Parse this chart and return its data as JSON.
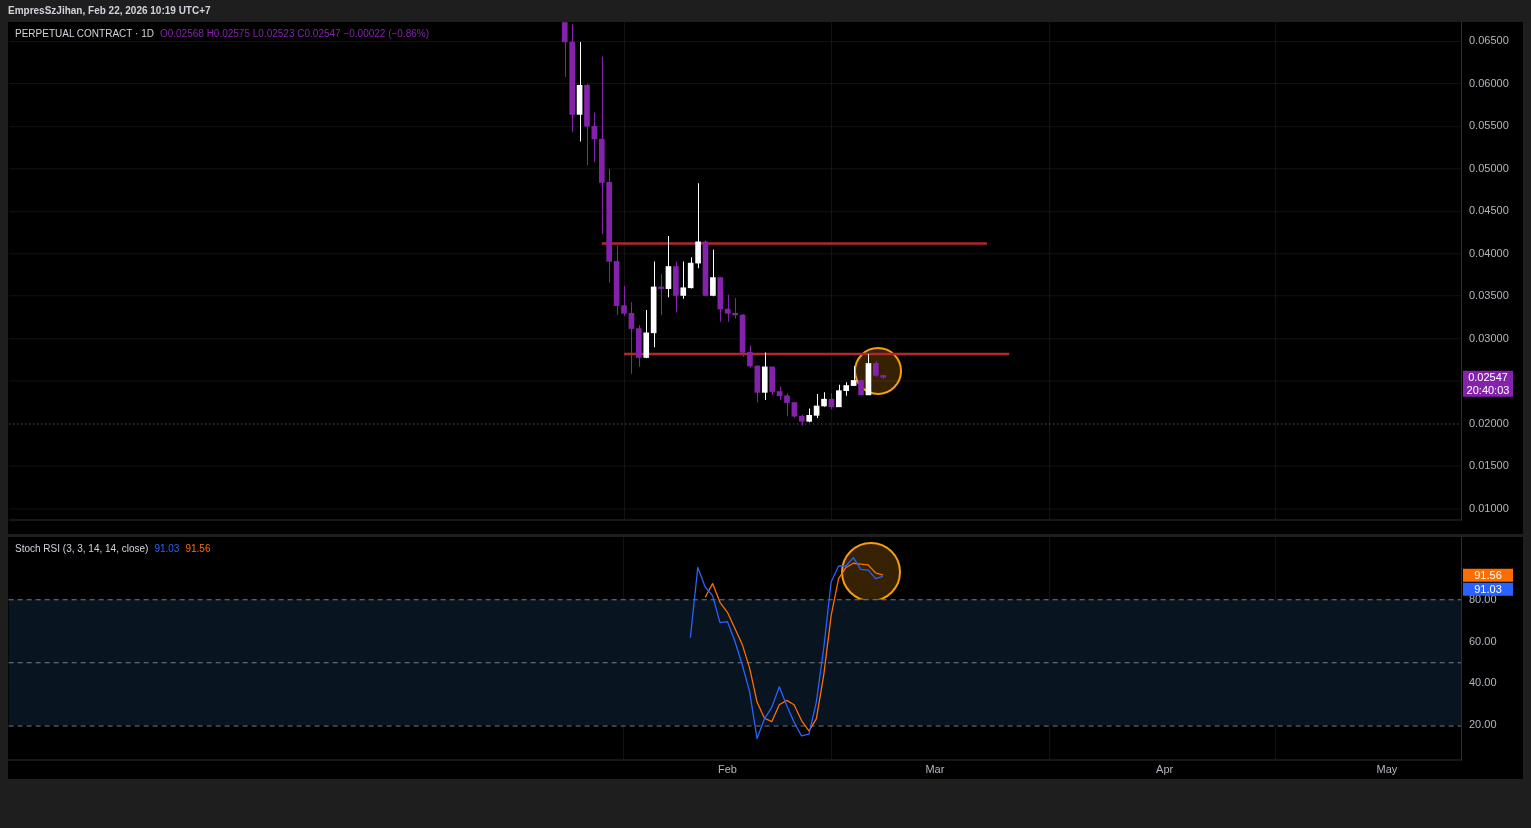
{
  "chart_data": [
    {
      "type": "candlestick",
      "title": "PERPETUAL CONTRACT · 1D",
      "subtitle": "EmpresSzJihan, Feb 22, 2026 10:19 UTC+7",
      "annotations": [
        "O0.02568 H0.02575 L0.02523 C0.02547 −0.00022 (−0.86%)",
        "0.02547",
        "20:40:03"
      ],
      "x": [
        "2026-01-10",
        "2026-01-11",
        "2026-01-12",
        "2026-01-13",
        "2026-01-14",
        "2026-01-15",
        "2026-01-16",
        "2026-01-17",
        "2026-01-18",
        "2026-01-19",
        "2026-01-20",
        "2026-01-21",
        "2026-01-22",
        "2026-01-23",
        "2026-01-24",
        "2026-01-25",
        "2026-01-26",
        "2026-01-27",
        "2026-01-28",
        "2026-01-29",
        "2026-01-30",
        "2026-01-31",
        "2026-02-01",
        "2026-02-02",
        "2026-02-03",
        "2026-02-04",
        "2026-02-05",
        "2026-02-06",
        "2026-02-07",
        "2026-02-08",
        "2026-02-09",
        "2026-02-10",
        "2026-02-11",
        "2026-02-12",
        "2026-02-13",
        "2026-02-14",
        "2026-02-15",
        "2026-02-16",
        "2026-02-17",
        "2026-02-18",
        "2026-02-19",
        "2026-02-20",
        "2026-02-21",
        "2026-02-22"
      ],
      "ohlc": [
        [
          0.0672,
          0.0672,
          0.0608,
          0.0649
        ],
        [
          0.0649,
          0.067,
          0.0543,
          0.0564
        ],
        [
          0.0564,
          0.0649,
          0.0532,
          0.0598
        ],
        [
          0.0598,
          0.06,
          0.0504,
          0.055
        ],
        [
          0.055,
          0.0566,
          0.0508,
          0.0535
        ],
        [
          0.0535,
          0.0632,
          0.0423,
          0.0484
        ],
        [
          0.0484,
          0.05,
          0.0366,
          0.0391
        ],
        [
          0.0391,
          0.041,
          0.0328,
          0.0339
        ],
        [
          0.0339,
          0.0362,
          0.0327,
          0.033
        ],
        [
          0.033,
          0.0343,
          0.0259,
          0.0312
        ],
        [
          0.0312,
          0.0316,
          0.0267,
          0.0278
        ],
        [
          0.0278,
          0.0334,
          0.0277,
          0.0307
        ],
        [
          0.0307,
          0.0391,
          0.029,
          0.0361
        ],
        [
          0.0361,
          0.0376,
          0.0328,
          0.0359
        ],
        [
          0.0359,
          0.0421,
          0.0349,
          0.0385
        ],
        [
          0.0385,
          0.0391,
          0.0331,
          0.0351
        ],
        [
          0.0351,
          0.0391,
          0.0347,
          0.036
        ],
        [
          0.036,
          0.0396,
          0.0359,
          0.0389
        ],
        [
          0.0389,
          0.0483,
          0.0383,
          0.0414
        ],
        [
          0.0414,
          0.0416,
          0.035,
          0.0351
        ],
        [
          0.0351,
          0.0405,
          0.035,
          0.0372
        ],
        [
          0.0372,
          0.0373,
          0.032,
          0.0335
        ],
        [
          0.0335,
          0.0352,
          0.032,
          0.033
        ],
        [
          0.033,
          0.0348,
          0.0324,
          0.0328
        ],
        [
          0.0328,
          0.0329,
          0.0279,
          0.0284
        ],
        [
          0.0284,
          0.0292,
          0.0266,
          0.0268
        ],
        [
          0.0268,
          0.0269,
          0.0225,
          0.0237
        ],
        [
          0.0237,
          0.0284,
          0.0228,
          0.0267
        ],
        [
          0.0267,
          0.0267,
          0.0234,
          0.0238
        ],
        [
          0.0238,
          0.0244,
          0.0228,
          0.0233
        ],
        [
          0.0233,
          0.0236,
          0.0209,
          0.0225
        ],
        [
          0.0225,
          0.0226,
          0.0207,
          0.0209
        ],
        [
          0.0209,
          0.0211,
          0.0198,
          0.0203
        ],
        [
          0.0203,
          0.0218,
          0.0202,
          0.021
        ],
        [
          0.021,
          0.0235,
          0.0207,
          0.0221
        ],
        [
          0.0221,
          0.0237,
          0.022,
          0.0229
        ],
        [
          0.0229,
          0.0236,
          0.0217,
          0.022
        ],
        [
          0.022,
          0.0246,
          0.022,
          0.0239
        ],
        [
          0.0239,
          0.0249,
          0.0233,
          0.0245
        ],
        [
          0.0245,
          0.0268,
          0.0245,
          0.0251
        ],
        [
          0.0251,
          0.0252,
          0.0234,
          0.0234
        ],
        [
          0.0234,
          0.0282,
          0.0234,
          0.0271
        ],
        [
          0.0271,
          0.0274,
          0.0255,
          0.0257
        ],
        [
          0.02568,
          0.02575,
          0.02523,
          0.02547
        ]
      ],
      "colors": [
        "#8522ab",
        "#8522ab",
        "#ffffff",
        "#8522ab",
        "#8522ab",
        "#8522ab",
        "#8522ab",
        "#8522ab",
        "#8522ab",
        "#8522ab",
        "#8522ab",
        "#ffffff",
        "#ffffff",
        "#8522ab",
        "#ffffff",
        "#8522ab",
        "#ffffff",
        "#ffffff",
        "#ffffff",
        "#8522ab",
        "#ffffff",
        "#8522ab",
        "#8522ab",
        "#8522ab",
        "#8522ab",
        "#8522ab",
        "#8522ab",
        "#ffffff",
        "#8522ab",
        "#8522ab",
        "#8522ab",
        "#8522ab",
        "#8522ab",
        "#ffffff",
        "#ffffff",
        "#ffffff",
        "#8522ab",
        "#ffffff",
        "#ffffff",
        "#ffffff",
        "#8522ab",
        "#ffffff",
        "#8522ab",
        "#8522ab"
      ],
      "series": [
        {
          "type": "line",
          "color": "#b2282d",
          "x": [
            "2026-01-15",
            "2026-03-08"
          ],
          "values": [
            0.0412,
            0.0412
          ]
        },
        {
          "type": "line",
          "color": "#b2282d",
          "x": [
            "2026-01-18",
            "2026-03-11"
          ],
          "values": [
            0.0282,
            0.0282
          ]
        }
      ],
      "ref_lines": [
        {
          "axis": "y",
          "value": 0.02,
          "color": "#787b86",
          "line_style": "dotted"
        }
      ],
      "xlim": [
        "2025-10-27",
        "2026-05-11"
      ],
      "xticks": [
        {
          "value": "2026-02-01",
          "label": null
        },
        {
          "value": "2026-03-01",
          "label": null
        },
        {
          "value": "2026-04-01",
          "label": null
        },
        {
          "value": "2026-05-01",
          "label": null
        }
      ],
      "ylim": [
        0.00874,
        0.0673
      ],
      "yticks": [
        {
          "value": 0.01,
          "label": "0.01000"
        },
        {
          "value": 0.015,
          "label": "0.01500"
        },
        {
          "value": 0.02,
          "label": "0.02000"
        },
        {
          "value": 0.025,
          "label": null
        },
        {
          "value": 0.03,
          "label": "0.03000"
        },
        {
          "value": 0.035,
          "label": "0.03500"
        },
        {
          "value": 0.04,
          "label": "0.04000"
        },
        {
          "value": 0.045,
          "label": "0.04500"
        },
        {
          "value": 0.05,
          "label": "0.05000"
        },
        {
          "value": 0.055,
          "label": "0.05500"
        },
        {
          "value": 0.06,
          "label": "0.06000"
        },
        {
          "value": 0.065,
          "label": "0.06500"
        }
      ],
      "tick_labels": "y",
      "grid": true,
      "legend": false
    },
    {
      "type": "line",
      "title": "Stoch RSI (3, 3, 14, 14, close)",
      "annotations": [
        "91.03",
        "91.56",
        "91.03",
        "91.56"
      ],
      "series": [
        {
          "color": "#2962ff",
          "x": [
            "2026-01-27",
            "2026-01-28",
            "2026-01-29",
            "2026-01-30",
            "2026-01-31",
            "2026-02-01",
            "2026-02-02",
            "2026-02-03",
            "2026-02-04",
            "2026-02-05",
            "2026-02-06",
            "2026-02-07",
            "2026-02-08",
            "2026-02-09",
            "2026-02-10",
            "2026-02-11",
            "2026-02-12",
            "2026-02-13",
            "2026-02-14",
            "2026-02-15",
            "2026-02-16",
            "2026-02-17",
            "2026-02-18",
            "2026-02-19",
            "2026-02-20",
            "2026-02-21",
            "2026-02-22"
          ],
          "values": [
            61.8,
            95.3,
            86.0,
            81.9,
            69.0,
            69.5,
            60.2,
            48.9,
            36.0,
            13.7,
            23.1,
            28.7,
            38.4,
            29.5,
            21.5,
            15.0,
            15.8,
            31.1,
            56.9,
            88.4,
            96.0,
            96.0,
            100.0,
            94.4,
            94.0,
            90.0,
            91.0
          ]
        },
        {
          "color": "#ff6d00",
          "x": [
            "2026-01-29",
            "2026-01-30",
            "2026-01-31",
            "2026-02-01",
            "2026-02-02",
            "2026-02-03",
            "2026-02-04",
            "2026-02-05",
            "2026-02-06",
            "2026-02-07",
            "2026-02-08",
            "2026-02-09",
            "2026-02-10",
            "2026-02-11",
            "2026-02-12",
            "2026-02-13",
            "2026-02-14",
            "2026-02-15",
            "2026-02-16",
            "2026-02-17",
            "2026-02-18",
            "2026-02-19",
            "2026-02-20",
            "2026-02-21",
            "2026-02-22"
          ],
          "values": [
            81.1,
            87.6,
            78.7,
            73.9,
            66.3,
            58.6,
            47.3,
            31.1,
            23.4,
            21.8,
            29.8,
            31.9,
            29.8,
            22.3,
            17.4,
            23.1,
            44.0,
            72.3,
            90.0,
            95.3,
            97.3,
            96.9,
            96.5,
            92.7,
            91.6
          ]
        }
      ],
      "bands": [
        {
          "axis": "y",
          "from": 20,
          "to": 80,
          "color": "#08141f"
        }
      ],
      "ref_lines": [
        {
          "axis": "y",
          "value": 80,
          "color": "#787b86",
          "line_style": "dashed"
        },
        {
          "axis": "y",
          "value": 50,
          "color": "#787b86",
          "line_style": "dashed"
        },
        {
          "axis": "y",
          "value": 20,
          "color": "#787b86",
          "line_style": "dashed"
        }
      ],
      "xlim": [
        "2025-10-27",
        "2026-05-11"
      ],
      "xticks": [
        {
          "value": "2026-02-01",
          "label": "Feb"
        },
        {
          "value": "2026-03-01",
          "label": "Mar"
        },
        {
          "value": "2026-04-01",
          "label": "Apr"
        },
        {
          "value": "2026-05-01",
          "label": "May"
        }
      ],
      "ylim": [
        3.5,
        110
      ],
      "yticks": [
        {
          "value": 20,
          "label": "20.00"
        },
        {
          "value": 40,
          "label": "40.00"
        },
        {
          "value": 60,
          "label": "60.00"
        },
        {
          "value": 80,
          "label": "80.00"
        }
      ],
      "grid": true,
      "legend": false
    }
  ]
}
